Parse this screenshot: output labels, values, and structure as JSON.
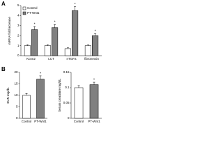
{
  "chart_data": [
    {
      "type": "bar",
      "panel": "A",
      "ylabel": "mRNA fold increase",
      "categories": [
        "Kcnn2",
        "LCT",
        "nTGFa",
        "fibronectin"
      ],
      "series": [
        {
          "name": "Control",
          "color": "#ffffff",
          "values": [
            1,
            1,
            0.7,
            1
          ],
          "errors": [
            0.1,
            0.1,
            0.1,
            0.1
          ]
        },
        {
          "name": "PT-Wnt1",
          "color": "#808080",
          "values": [
            2.6,
            2.8,
            4.5,
            2.0
          ],
          "errors": [
            0.3,
            0.3,
            0.4,
            0.2
          ]
        }
      ],
      "significance": [
        "*",
        "*",
        "*",
        "*"
      ],
      "ylim": [
        0,
        5
      ],
      "yticks": [
        0,
        1,
        2,
        3,
        4,
        5
      ],
      "legend": "upper left"
    },
    {
      "type": "bar",
      "panel": "B",
      "ylabel": "BUN mg/dL",
      "categories": [
        "Control",
        "PT-Wnt1"
      ],
      "values": [
        10,
        17
      ],
      "errors": [
        0.8,
        1.5
      ],
      "colors": [
        "#ffffff",
        "#808080"
      ],
      "significance": [
        null,
        "*"
      ],
      "ylim": [
        0,
        20
      ],
      "yticks": [
        0,
        5,
        10,
        15,
        20
      ]
    },
    {
      "type": "bar",
      "ylabel": "Serum creatinine mg/dL",
      "categories": [
        "Control",
        "PT-Wnt1"
      ],
      "values": [
        0.1,
        0.11
      ],
      "errors": [
        0.007,
        0.008
      ],
      "colors": [
        "#ffffff",
        "#808080"
      ],
      "significance": [
        null,
        "*"
      ],
      "ylim": [
        0,
        0.15
      ],
      "yticks": [
        0,
        0.05,
        0.1,
        0.15
      ]
    }
  ]
}
